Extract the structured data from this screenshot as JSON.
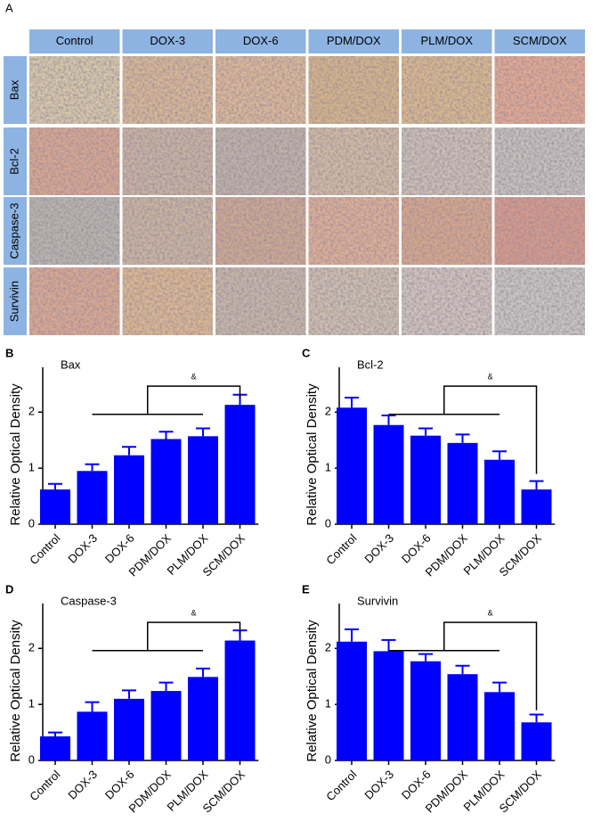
{
  "panel_a": {
    "label": "A",
    "columns": [
      "Control",
      "DOX-3",
      "DOX-6",
      "PDM/DOX",
      "PLM/DOX",
      "SCM/DOX"
    ],
    "rows": [
      "Bax",
      "Bcl-2",
      "Caspase-3",
      "Survivin"
    ]
  },
  "chart_data": [
    {
      "type": "bar",
      "panel_label": "B",
      "title": "Bax",
      "y_label": "Relative Optical Density",
      "categories": [
        "Control",
        "DOX-3",
        "DOX-6",
        "PDM/DOX",
        "PLM/DOX",
        "SCM/DOX"
      ],
      "values": [
        0.62,
        0.95,
        1.23,
        1.52,
        1.57,
        2.13
      ],
      "errors": [
        0.1,
        0.12,
        0.15,
        0.13,
        0.14,
        0.18
      ],
      "color": "#0000ff",
      "ylim": [
        0,
        2.8
      ],
      "yticks": [
        0,
        1,
        2
      ],
      "annotation": "&"
    },
    {
      "type": "bar",
      "panel_label": "C",
      "title": "Bcl-2",
      "y_label": "Relative Optical Density",
      "categories": [
        "Control",
        "DOX-3",
        "DOX-6",
        "PDM/DOX",
        "PLM/DOX",
        "SCM/DOX"
      ],
      "values": [
        2.08,
        1.77,
        1.58,
        1.45,
        1.15,
        0.62
      ],
      "errors": [
        0.18,
        0.17,
        0.13,
        0.15,
        0.15,
        0.15
      ],
      "color": "#0000ff",
      "ylim": [
        0,
        2.8
      ],
      "yticks": [
        0,
        1,
        2
      ],
      "annotation": "&"
    },
    {
      "type": "bar",
      "panel_label": "D",
      "title": "Caspase-3",
      "y_label": "Relative Optical Density",
      "categories": [
        "Control",
        "DOX-3",
        "DOX-6",
        "PDM/DOX",
        "PLM/DOX",
        "SCM/DOX"
      ],
      "values": [
        0.43,
        0.87,
        1.1,
        1.24,
        1.49,
        2.14
      ],
      "errors": [
        0.07,
        0.17,
        0.15,
        0.15,
        0.15,
        0.18
      ],
      "color": "#0000ff",
      "ylim": [
        0,
        2.8
      ],
      "yticks": [
        0,
        1,
        2
      ],
      "annotation": "&"
    },
    {
      "type": "bar",
      "panel_label": "E",
      "title": "Survivin",
      "y_label": "Relative Optical Density",
      "categories": [
        "Control",
        "DOX-3",
        "DOX-6",
        "PDM/DOX",
        "PLM/DOX",
        "SCM/DOX"
      ],
      "values": [
        2.12,
        1.95,
        1.77,
        1.54,
        1.22,
        0.68
      ],
      "errors": [
        0.22,
        0.2,
        0.13,
        0.15,
        0.17,
        0.14
      ],
      "color": "#0000ff",
      "ylim": [
        0,
        2.8
      ],
      "yticks": [
        0,
        1,
        2
      ],
      "annotation": "&"
    }
  ]
}
